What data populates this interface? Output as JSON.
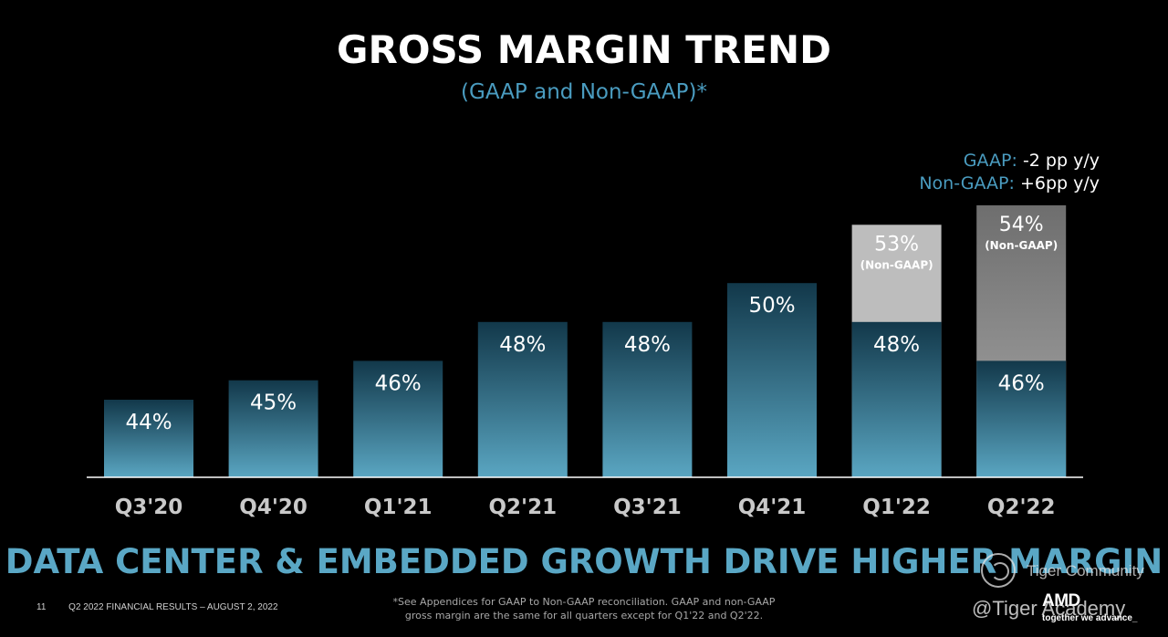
{
  "title": "GROSS MARGIN TREND",
  "subtitle": "(GAAP and Non-GAAP)*",
  "yoy": {
    "gaap_key": "GAAP:",
    "gaap_val": "-2 pp y/y",
    "nongaap_key": "Non-GAAP:",
    "nongaap_val": "+6pp y/y"
  },
  "chart_data": {
    "type": "bar",
    "title": "GROSS MARGIN TREND",
    "subtitle": "(GAAP and Non-GAAP)*",
    "xlabel": "",
    "ylabel": "",
    "categories": [
      "Q3'20",
      "Q4'20",
      "Q1'21",
      "Q2'21",
      "Q3'21",
      "Q4'21",
      "Q1'22",
      "Q2'22"
    ],
    "series": [
      {
        "name": "GAAP",
        "values": [
          44,
          45,
          46,
          48,
          48,
          50,
          48,
          46
        ],
        "labels": [
          "44%",
          "45%",
          "46%",
          "48%",
          "48%",
          "50%",
          "48%",
          "46%"
        ]
      },
      {
        "name": "Non-GAAP",
        "values": [
          null,
          null,
          null,
          null,
          null,
          null,
          53,
          54
        ],
        "labels": [
          "",
          "",
          "",
          "",
          "",
          "",
          "53%",
          "54%"
        ],
        "tag": "(Non-GAAP)"
      }
    ],
    "grid": false,
    "axis_line": true,
    "colors": {
      "bar_top": "#12384a",
      "bar_bottom": "#5aa6c2",
      "nongaap_q1": "#bdbdbd",
      "nongaap_q2": "#a9a9a9",
      "nongaap_q2_top": "#6e6e6e"
    }
  },
  "headline": "DATA CENTER & EMBEDDED GROWTH DRIVE HIGHER MARGIN",
  "footer": {
    "page_number": "11",
    "deck_title": "Q2 2022 FINANCIAL RESULTS – AUGUST 2, 2022",
    "footnote_line1": "*See Appendices for GAAP to Non-GAAP reconciliation. GAAP and non-GAAP",
    "footnote_line2": "gross margin are the same for all quarters except for Q1'22 and Q2'22."
  },
  "brand": {
    "logo": "AMD",
    "tagline": "together we advance_"
  },
  "watermark": {
    "line1": "Tiger Community",
    "line2": "@Tiger Academy"
  }
}
